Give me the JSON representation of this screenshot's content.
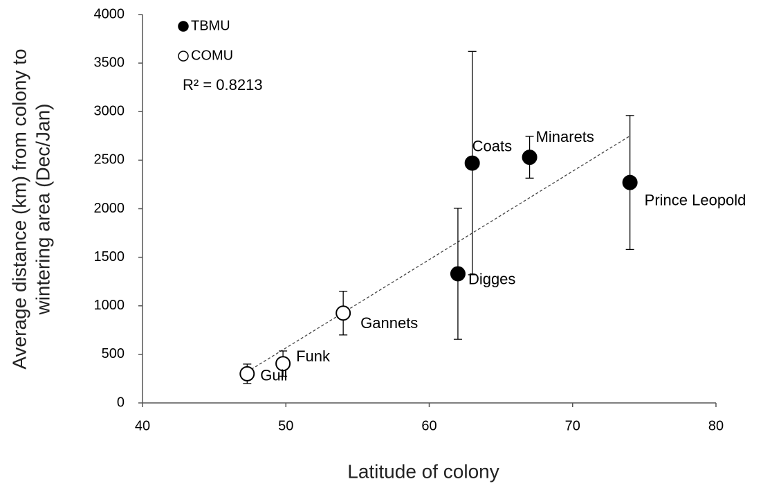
{
  "chart_data": {
    "type": "scatter",
    "xlabel": "Latitude of colony",
    "ylabel": [
      "Average distance (km) from colony to",
      "wintering area (Dec/Jan)"
    ],
    "xlim": [
      40,
      80
    ],
    "xticks": [
      40,
      50,
      60,
      70,
      80
    ],
    "ylim": [
      0,
      4000
    ],
    "yticks": [
      0,
      500,
      1000,
      1500,
      2000,
      2500,
      3000,
      3500,
      4000
    ],
    "grid": false,
    "annotation": "R² = 0.8213",
    "trendline": {
      "x": [
        47.3,
        74
      ],
      "y": [
        320,
        2750
      ]
    },
    "series": [
      {
        "name": "TBMU",
        "color": "#000000",
        "x": [
          63,
          67,
          74,
          62
        ],
        "values": [
          2470,
          2530,
          2270,
          1330
        ],
        "errors": [
          1150,
          215,
          690,
          675
        ],
        "labels": [
          "Coats",
          "Minarets",
          "Prince Leopold",
          "Digges"
        ]
      },
      {
        "name": "COMU",
        "color": "#ffffff",
        "x": [
          54,
          49.8,
          47.3
        ],
        "values": [
          925,
          405,
          300
        ],
        "errors": [
          225,
          130,
          100
        ],
        "labels": [
          "Gannets",
          "Funk",
          "Gull"
        ]
      }
    ]
  }
}
